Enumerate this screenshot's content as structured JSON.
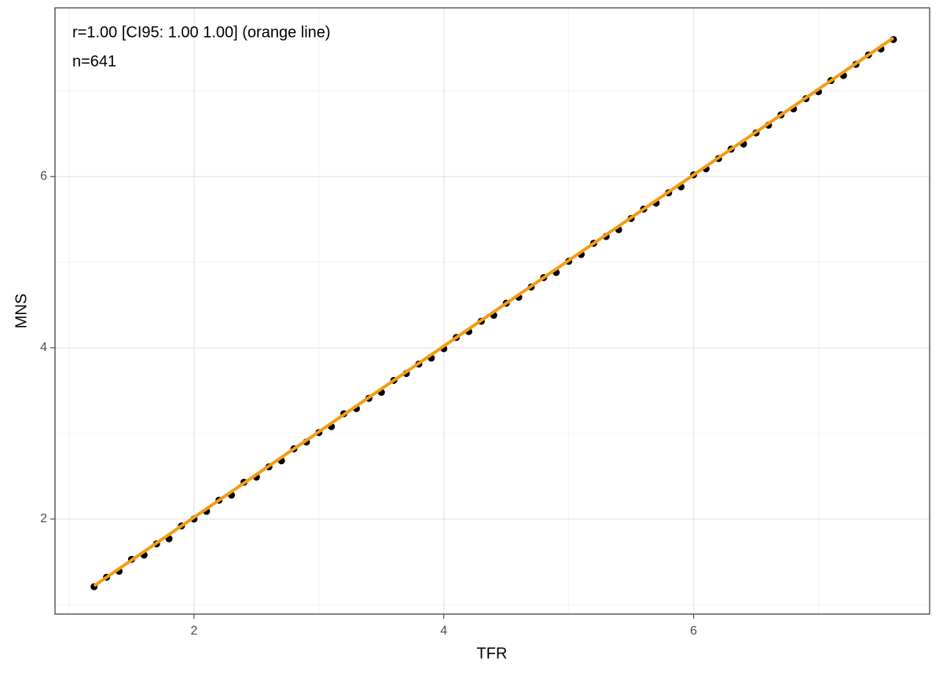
{
  "chart_data": {
    "type": "scatter",
    "annotations": [
      "r=1.00 [CI95: 1.00 1.00] (orange line)",
      "n=641"
    ],
    "x_label": "TFR",
    "y_label": "MNS",
    "xlim": [
      0.887,
      7.89
    ],
    "ylim": [
      0.89,
      7.97
    ],
    "xticks": [
      2,
      4,
      6
    ],
    "yticks": [
      2,
      4,
      6
    ],
    "xminor": [
      1,
      3,
      5,
      7
    ],
    "yminor": [
      1,
      3,
      5,
      7
    ],
    "grid": true,
    "series": [
      {
        "type": "scatter",
        "color": "#000000",
        "x": [
          1.2,
          1.3,
          1.4,
          1.5,
          1.6,
          1.7,
          1.8,
          1.9,
          2.0,
          2.1,
          2.2,
          2.3,
          2.4,
          2.5,
          2.6,
          2.7,
          2.8,
          2.9,
          3.0,
          3.1,
          3.2,
          3.3,
          3.4,
          3.5,
          3.6,
          3.7,
          3.8,
          3.9,
          4.0,
          4.1,
          4.2,
          4.3,
          4.4,
          4.5,
          4.6,
          4.7,
          4.8,
          4.9,
          5.0,
          5.1,
          5.2,
          5.3,
          5.4,
          5.5,
          5.6,
          5.7,
          5.8,
          5.9,
          6.0,
          6.1,
          6.2,
          6.3,
          6.4,
          6.5,
          6.6,
          6.7,
          6.8,
          6.9,
          7.0,
          7.1,
          7.2,
          7.3,
          7.4,
          7.5,
          7.6
        ],
        "values": [
          1.21,
          1.32,
          1.39,
          1.53,
          1.58,
          1.71,
          1.77,
          1.92,
          2.0,
          2.09,
          2.22,
          2.28,
          2.43,
          2.49,
          2.61,
          2.68,
          2.82,
          2.9,
          3.01,
          3.08,
          3.23,
          3.29,
          3.41,
          3.48,
          3.62,
          3.7,
          3.81,
          3.88,
          3.99,
          4.12,
          4.19,
          4.31,
          4.38,
          4.52,
          4.59,
          4.71,
          4.82,
          4.88,
          5.01,
          5.09,
          5.22,
          5.3,
          5.38,
          5.51,
          5.62,
          5.69,
          5.81,
          5.88,
          6.02,
          6.09,
          6.21,
          6.32,
          6.38,
          6.51,
          6.6,
          6.72,
          6.79,
          6.91,
          6.99,
          7.12,
          7.18,
          7.31,
          7.42,
          7.49,
          7.6
        ]
      },
      {
        "type": "line",
        "color": "#f39c12",
        "x": [
          1.2,
          7.6
        ],
        "values": [
          1.22,
          7.62
        ]
      }
    ]
  }
}
